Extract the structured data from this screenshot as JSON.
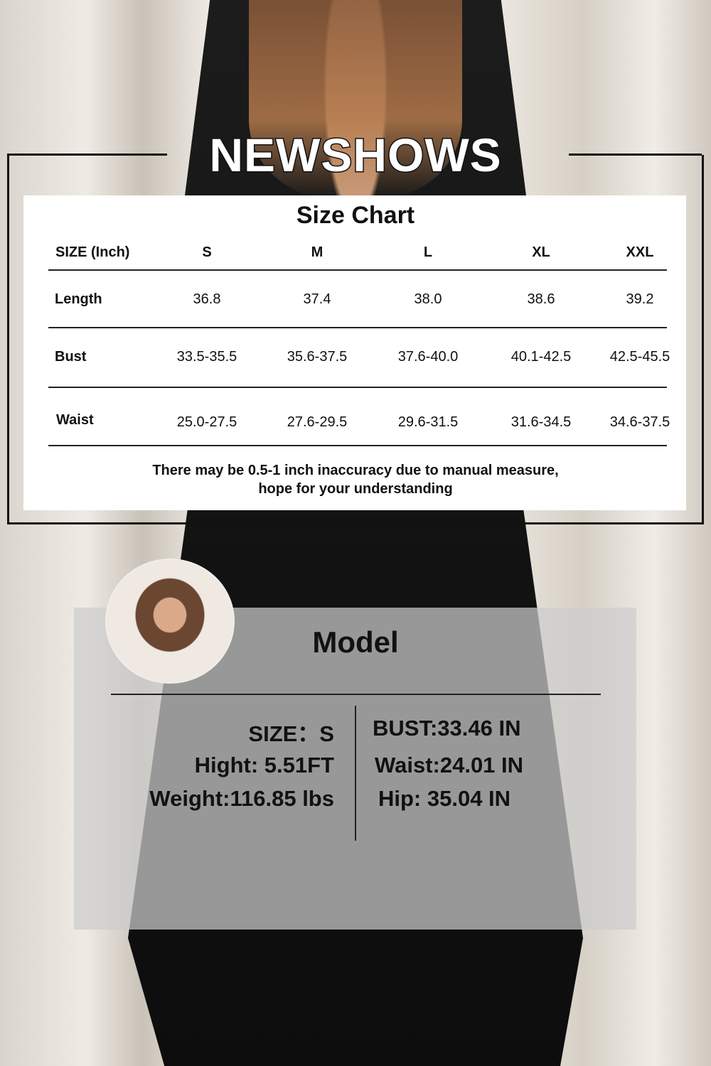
{
  "brand": "NEWSHOWS",
  "size_chart": {
    "title": "Size Chart",
    "header": [
      "SIZE (Inch)",
      "S",
      "M",
      "L",
      "XL",
      "XXL"
    ],
    "rows": [
      {
        "label": "Length",
        "values": [
          "36.8",
          "37.4",
          "38.0",
          "38.6",
          "39.2"
        ]
      },
      {
        "label": "Bust",
        "values": [
          "33.5-35.5",
          "35.6-37.5",
          "37.6-40.0",
          "40.1-42.5",
          "42.5-45.5"
        ]
      },
      {
        "label": "Waist",
        "values": [
          "25.0-27.5",
          "27.6-29.5",
          "29.6-31.5",
          "31.6-34.5",
          "34.6-37.5"
        ]
      }
    ],
    "note_line1": "There may be 0.5-1 inch inaccuracy due to manual measure,",
    "note_line2": "hope for your understanding"
  },
  "model": {
    "title": "Model",
    "left": [
      "SIZE：S",
      "Hight: 5.51FT",
      "Weight:116.85 lbs"
    ],
    "right": [
      "BUST:33.46 IN",
      "Waist:24.01 IN",
      "Hip: 35.04 IN"
    ]
  }
}
